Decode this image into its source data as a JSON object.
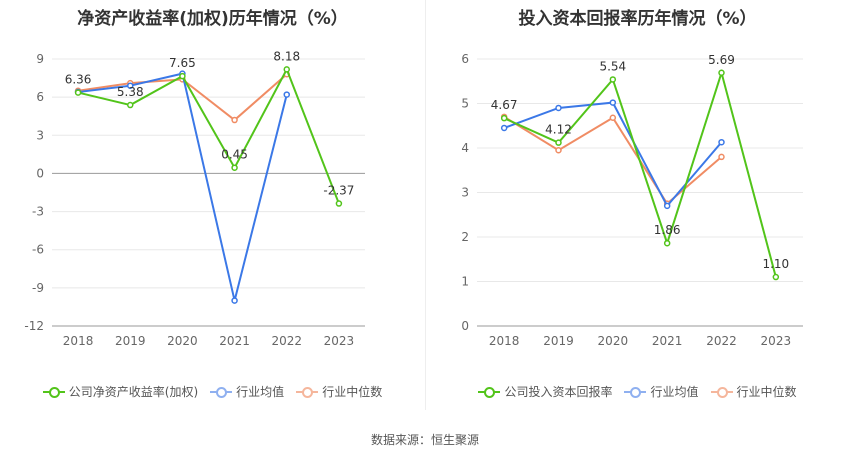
{
  "chart_data": [
    {
      "type": "line",
      "title": "净资产收益率(加权)历年情况（%）",
      "categories": [
        "2018",
        "2019",
        "2020",
        "2021",
        "2022",
        "2023"
      ],
      "yticks": [
        "9",
        "6",
        "3",
        "0",
        "-3",
        "-6",
        "-9",
        "-12"
      ],
      "ylim": [
        -12,
        9
      ],
      "grid": true,
      "legend_position": "bottom",
      "series": [
        {
          "name": "公司净资产收益率(加权)",
          "color": "#52c41a",
          "values": [
            6.36,
            5.38,
            7.65,
            0.45,
            8.18,
            -2.37
          ],
          "labels": [
            "6.36",
            "5.38",
            "7.65",
            "0.45",
            "8.18",
            "-2.37"
          ]
        },
        {
          "name": "行业均值",
          "color": "#3b78e7",
          "values": [
            6.4,
            6.9,
            7.85,
            -10.0,
            6.2,
            null
          ],
          "labels": []
        },
        {
          "name": "行业中位数",
          "color": "#f08c64",
          "values": [
            6.5,
            7.1,
            7.4,
            4.2,
            7.8,
            null
          ],
          "labels": []
        }
      ]
    },
    {
      "type": "line",
      "title": "投入资本回报率历年情况（%）",
      "categories": [
        "2018",
        "2019",
        "2020",
        "2021",
        "2022",
        "2023"
      ],
      "yticks": [
        "6",
        "5",
        "4",
        "3",
        "2",
        "1",
        "0"
      ],
      "ylim": [
        0,
        6
      ],
      "grid": true,
      "legend_position": "bottom",
      "series": [
        {
          "name": "公司投入资本回报率",
          "color": "#52c41a",
          "values": [
            4.67,
            4.12,
            5.54,
            1.86,
            5.69,
            1.1
          ],
          "labels": [
            "4.67",
            "4.12",
            "5.54",
            "1.86",
            "5.69",
            "1.10"
          ]
        },
        {
          "name": "行业均值",
          "color": "#3b78e7",
          "values": [
            4.45,
            4.9,
            5.02,
            2.7,
            4.13,
            null
          ],
          "labels": []
        },
        {
          "name": "行业中位数",
          "color": "#f08c64",
          "values": [
            4.7,
            3.95,
            4.68,
            2.75,
            3.8,
            null
          ],
          "labels": []
        }
      ]
    }
  ],
  "legend_colors": {
    "company": "#52c41a",
    "mean": "#8fb0f0",
    "median": "#f5b69c"
  },
  "footer": {
    "source": "数据来源：恒生聚源"
  }
}
